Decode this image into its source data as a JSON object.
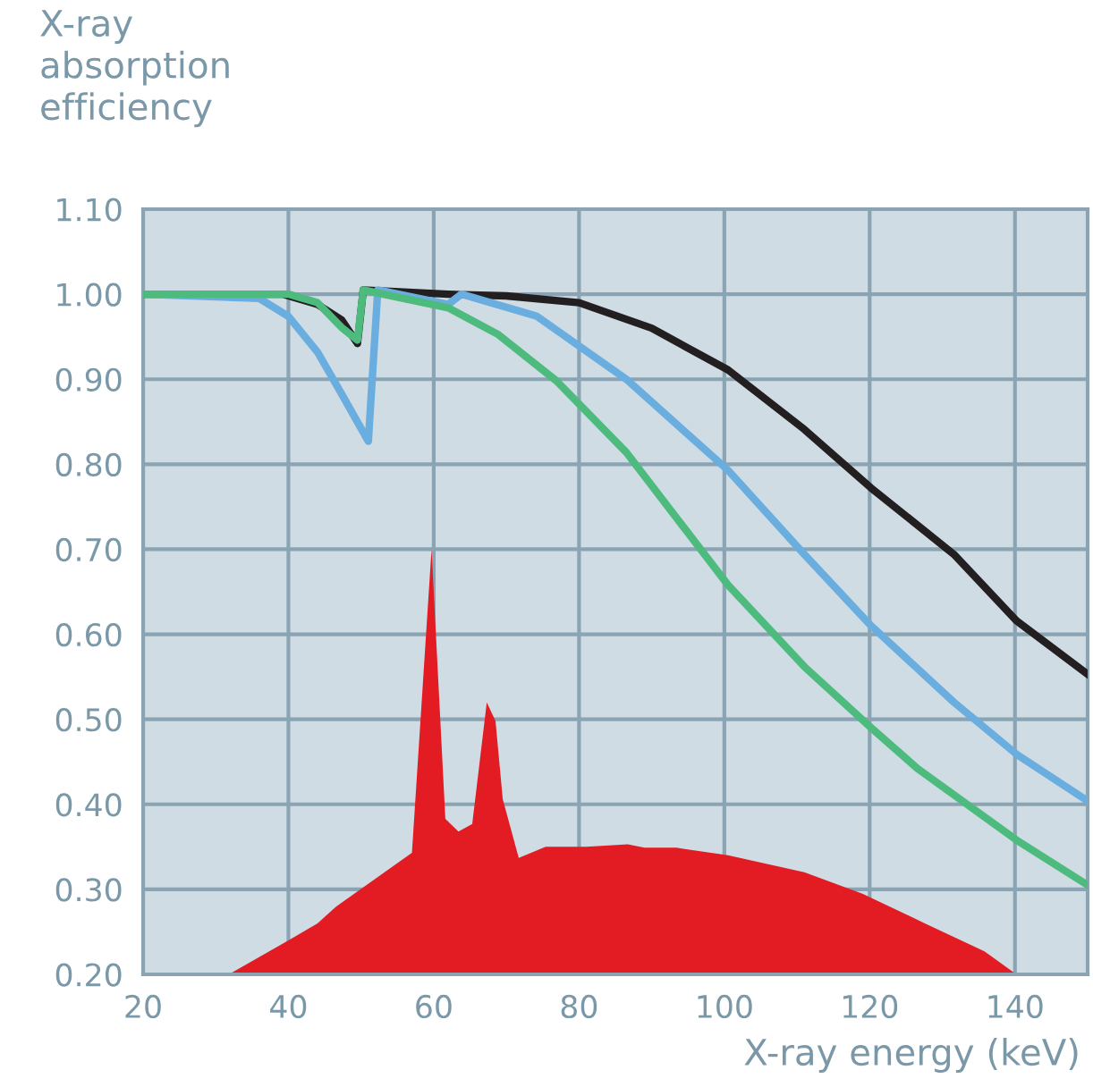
{
  "chart_data": {
    "type": "line",
    "ylabel": "X-ray\nabsorption\nefficiency",
    "xlabel": "X-ray energy (keV)",
    "xlim": [
      20,
      150
    ],
    "xticks": [
      20,
      40,
      60,
      80,
      100,
      120,
      140
    ],
    "ylim": [
      0.2,
      1.1
    ],
    "yticks": [
      {
        "value": 0.2,
        "label": "0.20"
      },
      {
        "value": 0.3,
        "label": "0.30"
      },
      {
        "value": 0.4,
        "label": "0.40"
      },
      {
        "value": 0.5,
        "label": "0.50"
      },
      {
        "value": 0.6,
        "label": "0.60"
      },
      {
        "value": 0.7,
        "label": "0.70"
      },
      {
        "value": 0.8,
        "label": "0.80"
      },
      {
        "value": 0.9,
        "label": "0.90"
      },
      {
        "value": 1.0,
        "label": "1.00"
      },
      {
        "value": 1.1,
        "label": "1.10"
      }
    ],
    "grid": true,
    "series": [
      {
        "type": "area",
        "color": "#e31b23",
        "x": [
          31.8,
          40,
          44,
          46.6,
          57,
          59.7,
          61.6,
          63.4,
          65.3,
          67.3,
          68.5,
          69.5,
          71.7,
          75.4,
          81,
          86.7,
          89,
          93.4,
          100.5,
          111,
          119,
          127.6,
          135.8,
          140.2
        ],
        "values": [
          0.2,
          0.24,
          0.26,
          0.28,
          0.343,
          0.7,
          0.383,
          0.368,
          0.377,
          0.52,
          0.498,
          0.406,
          0.337,
          0.35,
          0.35,
          0.353,
          0.349,
          0.349,
          0.34,
          0.32,
          0.295,
          0.26,
          0.227,
          0.2
        ]
      },
      {
        "color": "#231f20",
        "x": [
          20,
          39.2,
          44,
          47.3,
          49.5,
          50.3,
          62,
          70,
          80,
          90,
          100.5,
          111,
          120.2,
          131.6,
          140.2,
          150
        ],
        "values": [
          1.0,
          1.0,
          0.988,
          0.97,
          0.942,
          1.005,
          1.0,
          0.998,
          0.99,
          0.96,
          0.911,
          0.841,
          0.772,
          0.694,
          0.616,
          0.553
        ]
      },
      {
        "color": "#6aaee0",
        "x": [
          20,
          36,
          40,
          44,
          47.3,
          51,
          52.3,
          62,
          63.8,
          74.2,
          86.5,
          100.5,
          111,
          120.2,
          131.6,
          140.2,
          150
        ],
        "values": [
          1.0,
          0.995,
          0.974,
          0.932,
          0.883,
          0.827,
          1.005,
          0.988,
          1.0,
          0.974,
          0.9,
          0.793,
          0.694,
          0.61,
          0.52,
          0.459,
          0.404
        ]
      },
      {
        "color": "#4dbb7e",
        "x": [
          20,
          40,
          44,
          47.3,
          49.5,
          50.3,
          62,
          68.8,
          76.9,
          86.5,
          100.5,
          111,
          120.2,
          126.6,
          140.2,
          150
        ],
        "values": [
          1.0,
          1.0,
          0.99,
          0.961,
          0.946,
          1.005,
          0.984,
          0.953,
          0.898,
          0.814,
          0.658,
          0.562,
          0.49,
          0.442,
          0.358,
          0.305
        ]
      }
    ]
  }
}
